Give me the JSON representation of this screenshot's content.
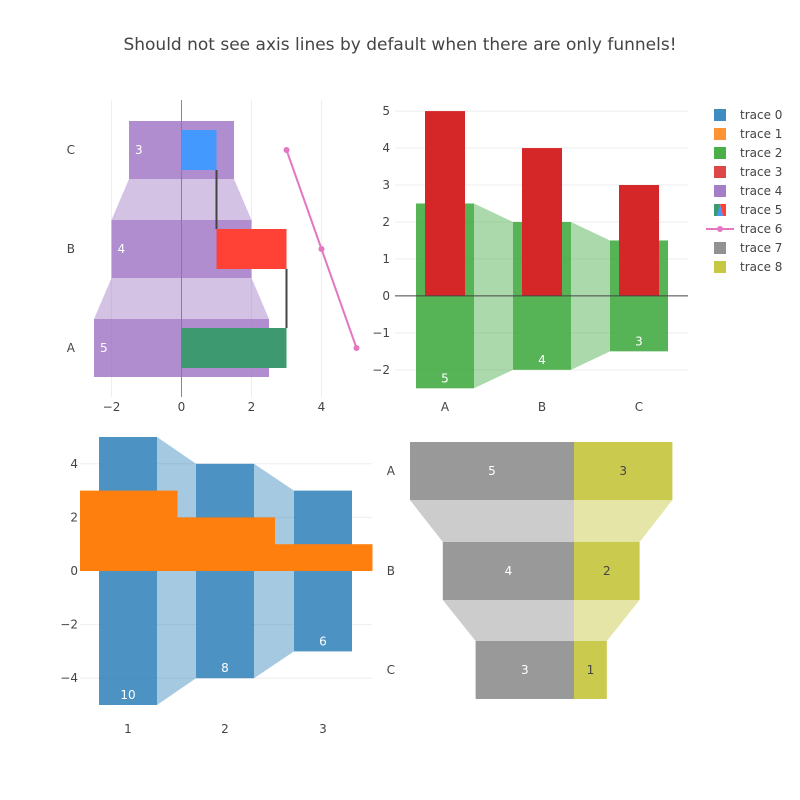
{
  "title": "Should not see axis lines by default when there are only funnels!",
  "colors": {
    "trace0": "#1f77b4",
    "trace1": "#ff7f0e",
    "trace2": "#2ca02c",
    "trace3": "#d62728",
    "trace4": "#9467bd",
    "trace5a": "#1f77b4",
    "trace5b": "#ff7f0e",
    "trace5c": "#d62728",
    "trace6": "#e377c2",
    "trace7": "#7f7f7f",
    "trace8": "#bcbd22",
    "grid": "#eeeeee",
    "zero": "#444444",
    "text": "#444444"
  },
  "legend": {
    "placement": "top-right",
    "items": [
      {
        "name": "trace 0",
        "color": "#1f77b4",
        "symbol": "square"
      },
      {
        "name": "trace 1",
        "color": "#ff7f0e",
        "symbol": "square"
      },
      {
        "name": "trace 2",
        "color": "#2ca02c",
        "symbol": "square"
      },
      {
        "name": "trace 3",
        "color": "#d62728",
        "symbol": "square"
      },
      {
        "name": "trace 4",
        "color": "#9467bd",
        "symbol": "square"
      },
      {
        "name": "trace 5",
        "color": "#1f77b4",
        "symbol": "waterfall"
      },
      {
        "name": "trace 6",
        "color": "#e377c2",
        "symbol": "line-marker"
      },
      {
        "name": "trace 7",
        "color": "#7f7f7f",
        "symbol": "square"
      },
      {
        "name": "trace 8",
        "color": "#bcbd22",
        "symbol": "square"
      }
    ]
  },
  "chart_data": [
    {
      "type": "funnel-combo",
      "panel": "top-left",
      "orientation": "horizontal",
      "y_categories": [
        "A",
        "B",
        "C"
      ],
      "xlim": [
        -2.9,
        5.1
      ],
      "xticks": [
        -2,
        0,
        2,
        4
      ],
      "tick_labels": [
        "−2",
        "0",
        "2",
        "4"
      ],
      "grid": true,
      "funnel": {
        "name": "trace 4",
        "x": [
          5,
          4,
          3
        ],
        "labels": [
          "5",
          "4",
          "3"
        ]
      },
      "waterfall": {
        "name": "trace 5",
        "base": 0,
        "x": [
          3,
          -2,
          -1
        ]
      },
      "line": {
        "name": "trace 6",
        "x": [
          5,
          4,
          3
        ]
      }
    },
    {
      "type": "funnel-combo",
      "panel": "top-right",
      "orientation": "vertical",
      "x_categories": [
        "A",
        "B",
        "C"
      ],
      "ylim": [
        -2.6,
        5.3
      ],
      "yticks": [
        -2,
        -1,
        0,
        1,
        2,
        3,
        4,
        5
      ],
      "tick_labels": [
        "−2",
        "−1",
        "0",
        "1",
        "2",
        "3",
        "4",
        "5"
      ],
      "grid": true,
      "funnel": {
        "name": "trace 2",
        "y": [
          5,
          4,
          3
        ],
        "labels": [
          "5",
          "4",
          "3"
        ]
      },
      "bar": {
        "name": "trace 3",
        "y": [
          5,
          4,
          3
        ]
      }
    },
    {
      "type": "funnel-combo",
      "panel": "bottom-left",
      "orientation": "vertical",
      "x_categories": [
        "1",
        "2",
        "3"
      ],
      "ylim": [
        -5,
        5
      ],
      "yticks": [
        -4,
        -2,
        0,
        2,
        4
      ],
      "tick_labels": [
        "−4",
        "−2",
        "0",
        "2",
        "4"
      ],
      "grid": true,
      "funnel": {
        "name": "trace 0",
        "y": [
          10,
          8,
          6
        ],
        "labels": [
          "10",
          "8",
          "6"
        ]
      },
      "bar": {
        "name": "trace 1",
        "y": [
          3,
          2,
          1
        ],
        "full_width": true
      }
    },
    {
      "type": "funnel",
      "panel": "bottom-right",
      "orientation": "horizontal",
      "y_categories": [
        "A",
        "B",
        "C"
      ],
      "grid": false,
      "series": [
        {
          "name": "trace 7",
          "values": [
            5,
            4,
            3
          ],
          "labels": [
            "5",
            "4",
            "3"
          ]
        },
        {
          "name": "trace 8",
          "values": [
            3,
            2,
            1
          ],
          "labels": [
            "3",
            "2",
            "1"
          ]
        }
      ]
    }
  ]
}
